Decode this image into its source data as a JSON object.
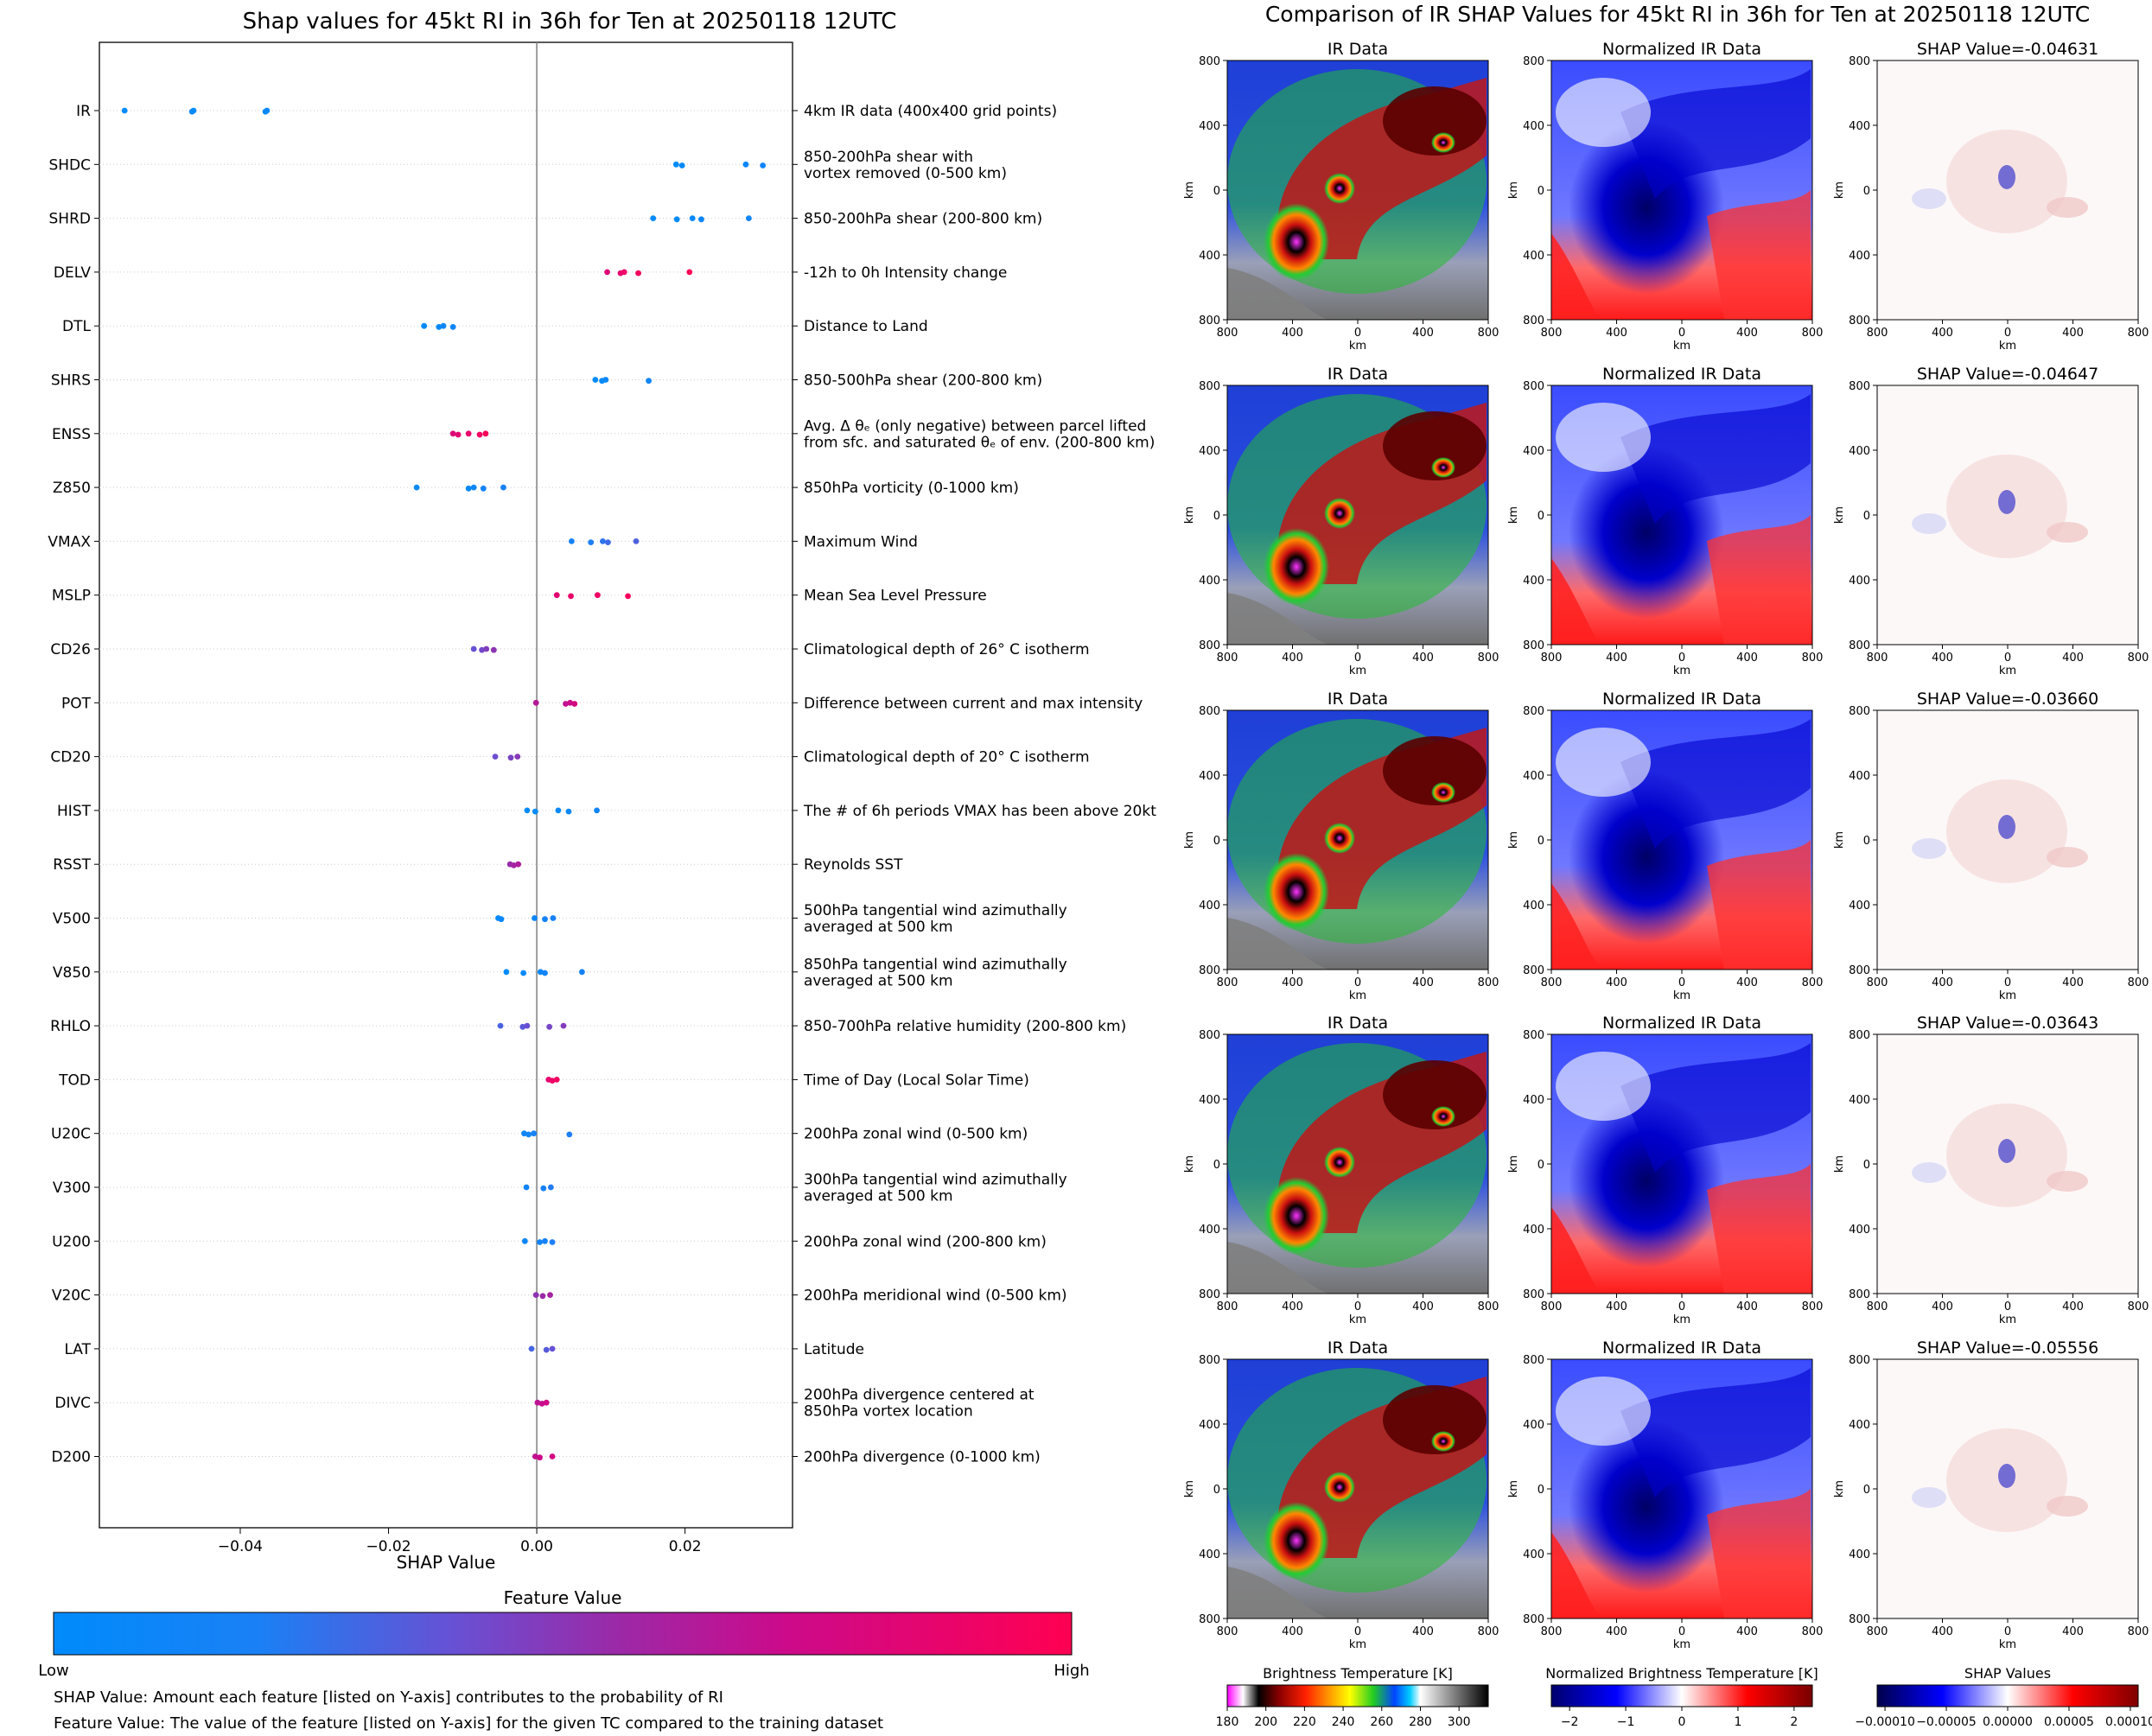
{
  "colors": {
    "low": "#008bfb",
    "high": "#ff0052",
    "zero_line": "#7f7f7f"
  },
  "left": {
    "title": "Shap values for 45kt RI in 36h for Ten at 20250118 12UTC",
    "colorbar": {
      "title": "Feature Value",
      "low_label": "Low",
      "high_label": "High"
    },
    "notes": [
      "SHAP Value: Amount each feature [listed on Y-axis] contributes to the probability of RI",
      "Feature Value: The value of the feature [listed on Y-axis] for the given TC compared to the training dataset"
    ]
  },
  "right": {
    "title": "Comparison of IR SHAP Values for 45kt RI in 36h for Ten at 20250118 12UTC",
    "col_titles": [
      "IR Data",
      "Normalized IR Data"
    ],
    "shap_titles": [
      "SHAP Value=-0.04631",
      "SHAP Value=-0.04647",
      "SHAP Value=-0.03660",
      "SHAP Value=-0.03643",
      "SHAP Value=-0.05556"
    ],
    "axis_label": "km",
    "ticks": [
      "800",
      "400",
      "0",
      "400",
      "800"
    ],
    "colorbars": [
      {
        "title": "Brightness Temperature [K]",
        "ticks": [
          "180",
          "200",
          "220",
          "240",
          "260",
          "280",
          "300"
        ]
      },
      {
        "title": "Normalized Brightness Temperature [K]",
        "ticks": [
          "−2",
          "−1",
          "0",
          "1",
          "2"
        ]
      },
      {
        "title": "SHAP Values",
        "ticks": [
          "−0.00010",
          "−0.00005",
          "0.00000",
          "0.00005",
          "0.00010"
        ]
      }
    ]
  },
  "chart_data": {
    "type": "scatter",
    "title": "Shap values for 45kt RI in 36h for Ten at 20250118 12UTC",
    "xlabel": "SHAP Value",
    "xlim": [
      -0.059,
      0.0345
    ],
    "xticks": [
      "−0.04",
      "−0.02",
      "0.00",
      "0.02"
    ],
    "xtick_values": [
      -0.04,
      -0.02,
      0.0,
      0.02
    ],
    "features": [
      {
        "name": "IR",
        "desc": "4km IR data (400x400 grid points)",
        "values": [
          -0.0556,
          -0.0465,
          -0.0463,
          -0.0366,
          -0.0364
        ],
        "fv": 0.0
      },
      {
        "name": "SHDC",
        "desc": "850-200hPa shear with\nvortex removed (0-500 km)",
        "values": [
          0.0188,
          0.0196,
          0.0282,
          0.0305
        ],
        "fv": 0.05
      },
      {
        "name": "SHRD",
        "desc": "850-200hPa shear (200-800 km)",
        "values": [
          0.0157,
          0.0189,
          0.021,
          0.0222,
          0.0286
        ],
        "fv": 0.05
      },
      {
        "name": "DELV",
        "desc": "-12h to 0h Intensity change",
        "values": [
          0.0095,
          0.0113,
          0.0118,
          0.0137,
          0.0206
        ],
        "fv": 0.9
      },
      {
        "name": "DTL",
        "desc": "Distance to Land",
        "values": [
          -0.0152,
          -0.0132,
          -0.0126,
          -0.0113
        ],
        "fv": 0.05
      },
      {
        "name": "SHRS",
        "desc": "850-500hPa shear (200-800 km)",
        "values": [
          0.0079,
          0.0088,
          0.0093,
          0.0151
        ],
        "fv": 0.05
      },
      {
        "name": "ENSS",
        "desc": "Avg. Δ θₑ (only negative) between parcel lifted\nfrom sfc. and saturated θₑ of env. (200-800 km)",
        "values": [
          -0.0113,
          -0.0106,
          -0.0092,
          -0.0077,
          -0.0069
        ],
        "fv": 0.88
      },
      {
        "name": "Z850",
        "desc": "850hPa vorticity (0-1000 km)",
        "values": [
          -0.0162,
          -0.0092,
          -0.0085,
          -0.0072,
          -0.0045
        ],
        "fv": 0.1
      },
      {
        "name": "VMAX",
        "desc": "Maximum Wind",
        "values": [
          0.0047,
          0.0073,
          0.0089,
          0.0096,
          0.0134
        ],
        "fv": 0.25
      },
      {
        "name": "MSLP",
        "desc": "Mean Sea Level Pressure",
        "values": [
          0.0027,
          0.0046,
          0.0082,
          0.0123
        ],
        "fv": 0.9
      },
      {
        "name": "CD26",
        "desc": "Climatological depth of 26° C isotherm",
        "values": [
          -0.0085,
          -0.0074,
          -0.0068,
          -0.0058
        ],
        "fv": 0.45
      },
      {
        "name": "POT",
        "desc": "Difference between current and max intensity",
        "values": [
          -0.0001,
          0.0039,
          0.0045,
          0.0051
        ],
        "fv": 0.7
      },
      {
        "name": "CD20",
        "desc": "Climatological depth of 20° C isotherm",
        "values": [
          -0.0056,
          -0.0035,
          -0.0026
        ],
        "fv": 0.45
      },
      {
        "name": "HIST",
        "desc": "The # of 6h periods VMAX has been above 20kt",
        "values": [
          -0.0013,
          -0.0002,
          0.0029,
          0.0043,
          0.0081
        ],
        "fv": 0.05
      },
      {
        "name": "RSST",
        "desc": "Reynolds SST",
        "values": [
          -0.0036,
          -0.0031,
          -0.0025
        ],
        "fv": 0.58
      },
      {
        "name": "V500",
        "desc": "500hPa tangential wind azimuthally\naveraged at 500 km",
        "values": [
          -0.0052,
          -0.0048,
          -0.0003,
          0.0011,
          0.0022
        ],
        "fv": 0.1
      },
      {
        "name": "V850",
        "desc": "850hPa tangential wind azimuthally\naveraged at 500 km",
        "values": [
          -0.0041,
          -0.0018,
          0.0005,
          0.0011,
          0.0061
        ],
        "fv": 0.08
      },
      {
        "name": "RHLO",
        "desc": "850-700hPa relative humidity (200-800 km)",
        "values": [
          -0.0049,
          -0.0019,
          -0.0013,
          0.0017,
          0.0036
        ],
        "fv": 0.4
      },
      {
        "name": "TOD",
        "desc": "Time of Day (Local Solar Time)",
        "values": [
          0.0016,
          0.0021,
          0.0027
        ],
        "fv": 0.9
      },
      {
        "name": "U20C",
        "desc": "200hPa zonal wind (0-500 km)",
        "values": [
          -0.0017,
          -0.0011,
          -0.0004,
          0.0044
        ],
        "fv": 0.15
      },
      {
        "name": "V300",
        "desc": "300hPa tangential wind azimuthally\naveraged at 500 km",
        "values": [
          -0.0014,
          0.0009,
          0.0019
        ],
        "fv": 0.18
      },
      {
        "name": "U200",
        "desc": "200hPa zonal wind (200-800 km)",
        "values": [
          -0.0016,
          0.0004,
          0.0011,
          0.0021
        ],
        "fv": 0.15
      },
      {
        "name": "V20C",
        "desc": "200hPa meridional wind (0-500 km)",
        "values": [
          -0.0001,
          0.0008,
          0.0018
        ],
        "fv": 0.55
      },
      {
        "name": "LAT",
        "desc": "Latitude",
        "values": [
          -0.0007,
          0.0013,
          0.0021
        ],
        "fv": 0.35
      },
      {
        "name": "DIVC",
        "desc": "200hPa divergence centered at\n850hPa vortex location",
        "values": [
          0.0001,
          0.0007,
          0.0013
        ],
        "fv": 0.7
      },
      {
        "name": "D200",
        "desc": "200hPa divergence (0-1000 km)",
        "values": [
          -0.0002,
          0.0004,
          0.0021
        ],
        "fv": 0.72
      }
    ]
  }
}
